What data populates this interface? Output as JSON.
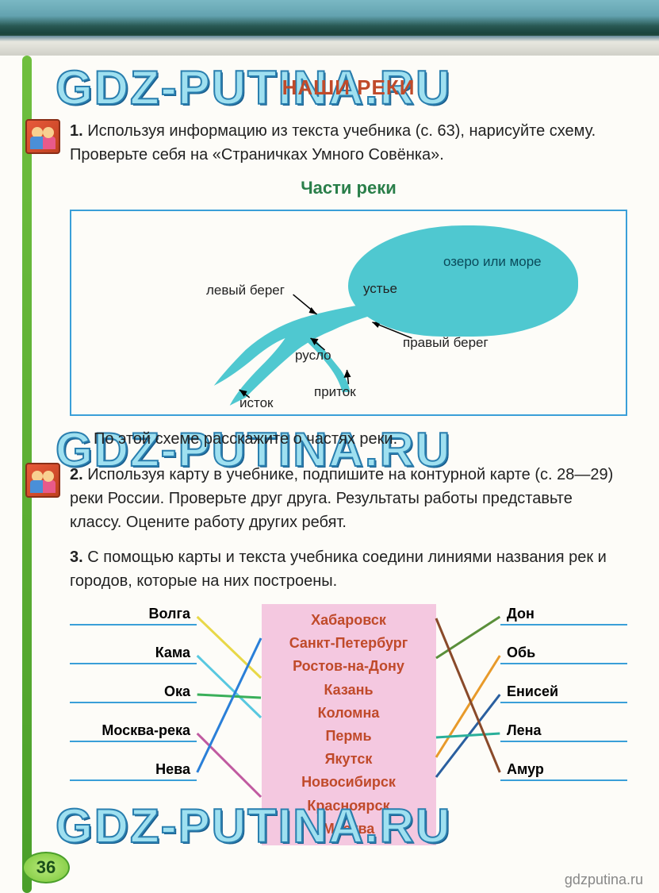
{
  "page": {
    "title": "НАШИ РЕКИ",
    "page_number": "36",
    "footer_url": "gdzputina.ru",
    "watermark": "GDZ-PUTINA.RU"
  },
  "task1": {
    "num": "1.",
    "text": "Используя информацию из текста учебника (с. 63), нарисуйте схему. Проверьте себя на «Страничках Умного Совёнка».",
    "subtitle": "Части реки",
    "caption": "По этой схеме расскажите о частях реки."
  },
  "diagram": {
    "labels": {
      "lake": "озеро или море",
      "left_bank": "левый берег",
      "right_bank": "правый берег",
      "mouth": "устье",
      "bed": "русло",
      "tributary": "приток",
      "source": "исток"
    },
    "colors": {
      "water": "#4fc8d0",
      "border": "#3a9fd8"
    }
  },
  "task2": {
    "num": "2.",
    "text": "Используя карту в учебнике, подпишите на контурной карте (с. 28—29) реки России. Проверьте друг друга. Результаты работы представьте классу. Оцените работу других ребят."
  },
  "task3": {
    "num": "3.",
    "text": "С помощью карты и текста учебника соедини линиями названия рек и городов, которые на них построены."
  },
  "match": {
    "rivers_left": [
      "Волга",
      "Кама",
      "Ока",
      "Москва-река",
      "Нева"
    ],
    "rivers_right": [
      "Дон",
      "Обь",
      "Енисей",
      "Лена",
      "Амур"
    ],
    "cities": [
      "Хабаровск",
      "Санкт-Петербург",
      "Ростов-на-Дону",
      "Казань",
      "Коломна",
      "Пермь",
      "Якутск",
      "Новосибирск",
      "Красноярск",
      "Москва"
    ],
    "colors": {
      "city_box": "#f4c8e0",
      "underline": "#3a9fd8"
    },
    "lines": [
      {
        "from": "left",
        "idx": 0,
        "city": 3,
        "color": "#e8d848",
        "w": 3
      },
      {
        "from": "left",
        "idx": 1,
        "city": 5,
        "color": "#58c8e0",
        "w": 3
      },
      {
        "from": "left",
        "idx": 2,
        "city": 4,
        "color": "#3aaf5a",
        "w": 3
      },
      {
        "from": "left",
        "idx": 3,
        "city": 9,
        "color": "#c05aa0",
        "w": 3
      },
      {
        "from": "left",
        "idx": 4,
        "city": 1,
        "color": "#2a7fd8",
        "w": 3
      },
      {
        "from": "right",
        "idx": 0,
        "city": 2,
        "color": "#5a8f3a",
        "w": 3
      },
      {
        "from": "right",
        "idx": 1,
        "city": 7,
        "color": "#e89a2a",
        "w": 3
      },
      {
        "from": "right",
        "idx": 2,
        "city": 8,
        "color": "#2a5f9f",
        "w": 3
      },
      {
        "from": "right",
        "idx": 3,
        "city": 6,
        "color": "#2aaf9a",
        "w": 3
      },
      {
        "from": "right",
        "idx": 4,
        "city": 0,
        "color": "#8a4a2a",
        "w": 3
      }
    ]
  }
}
